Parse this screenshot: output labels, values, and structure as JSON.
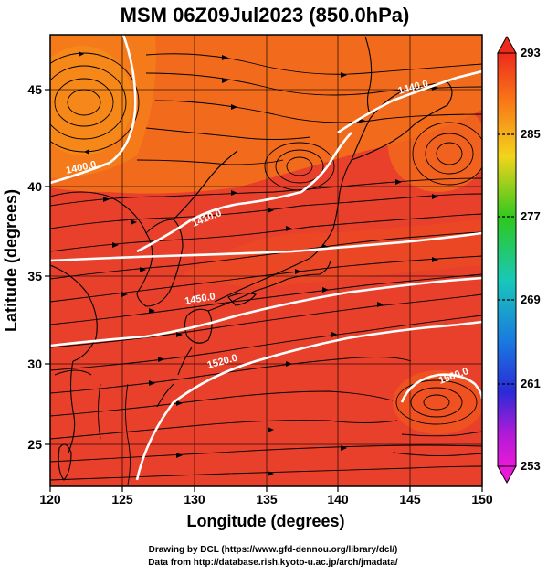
{
  "title": "MSM 06Z09Jul2023 (850.0hPa)",
  "axes": {
    "xlabel": "Longitude (degrees)",
    "ylabel": "Latitude (degrees)",
    "xticks": [
      "120",
      "125",
      "130",
      "135",
      "140",
      "145",
      "150"
    ],
    "yticks": [
      "25",
      "30",
      "35",
      "40",
      "45"
    ],
    "xlim": [
      120,
      150
    ],
    "ylim": [
      22.4,
      47.6
    ]
  },
  "colorbar": {
    "ticks": [
      "293",
      "285",
      "277",
      "269",
      "261",
      "253"
    ],
    "min": 253,
    "max": 293
  },
  "contours": [
    {
      "label": "1400.0"
    },
    {
      "label": "1440.0"
    },
    {
      "label": "1410.0"
    },
    {
      "label": "1450.0"
    },
    {
      "label": "1520.0"
    },
    {
      "label": "1560.0"
    }
  ],
  "credits": {
    "line1": "Drawing by DCL (https://www.gfd-dennou.org/library/dcl/)",
    "line2": "Data from http://database.rish.kyoto-u.ac.jp/arch/jmadata/"
  },
  "colors": {
    "field_dominant": "#e8402a",
    "field_warm": "#f26a1c",
    "contour": "#ffffff",
    "streamline": "#000000"
  }
}
